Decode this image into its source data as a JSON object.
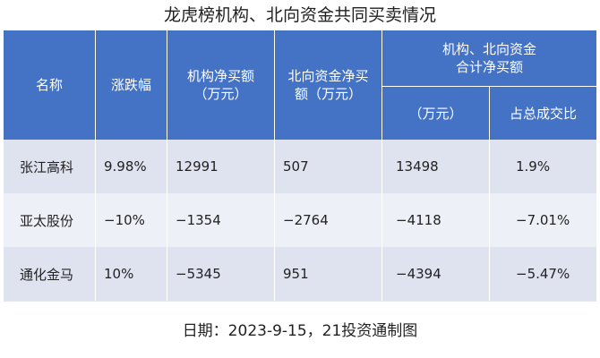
{
  "title": "龙虎榜机构、北向资金共同买卖情况",
  "headers": {
    "name": "名称",
    "change": "涨跌幅",
    "inst_line1": "机构净买额",
    "inst_line2": "（万元）",
    "north_line1": "北向资金净买",
    "north_line2": "额（万元）",
    "combined_line1": "机构、北向资金",
    "combined_line2": "合计净买额",
    "combined_sub_amount": "（万元）",
    "combined_sub_ratio": "占总成交比"
  },
  "rows": [
    {
      "name": "张江高科",
      "change": "9.98%",
      "inst": "12991",
      "north": "507",
      "total": "13498",
      "ratio": "1.9%"
    },
    {
      "name": "亚太股份",
      "change": "−10%",
      "inst": "−1354",
      "north": "−2764",
      "total": "−4118",
      "ratio": "−7.01%"
    },
    {
      "name": "通化金马",
      "change": "10%",
      "inst": "−5345",
      "north": "951",
      "total": "−4394",
      "ratio": "−5.47%"
    }
  ],
  "footer": "日期：2023-9-15，21投资通制图",
  "colors": {
    "header_bg": "#4472c4",
    "row_band_1": "#dfe3f0",
    "row_band_2": "#eef0f7"
  }
}
